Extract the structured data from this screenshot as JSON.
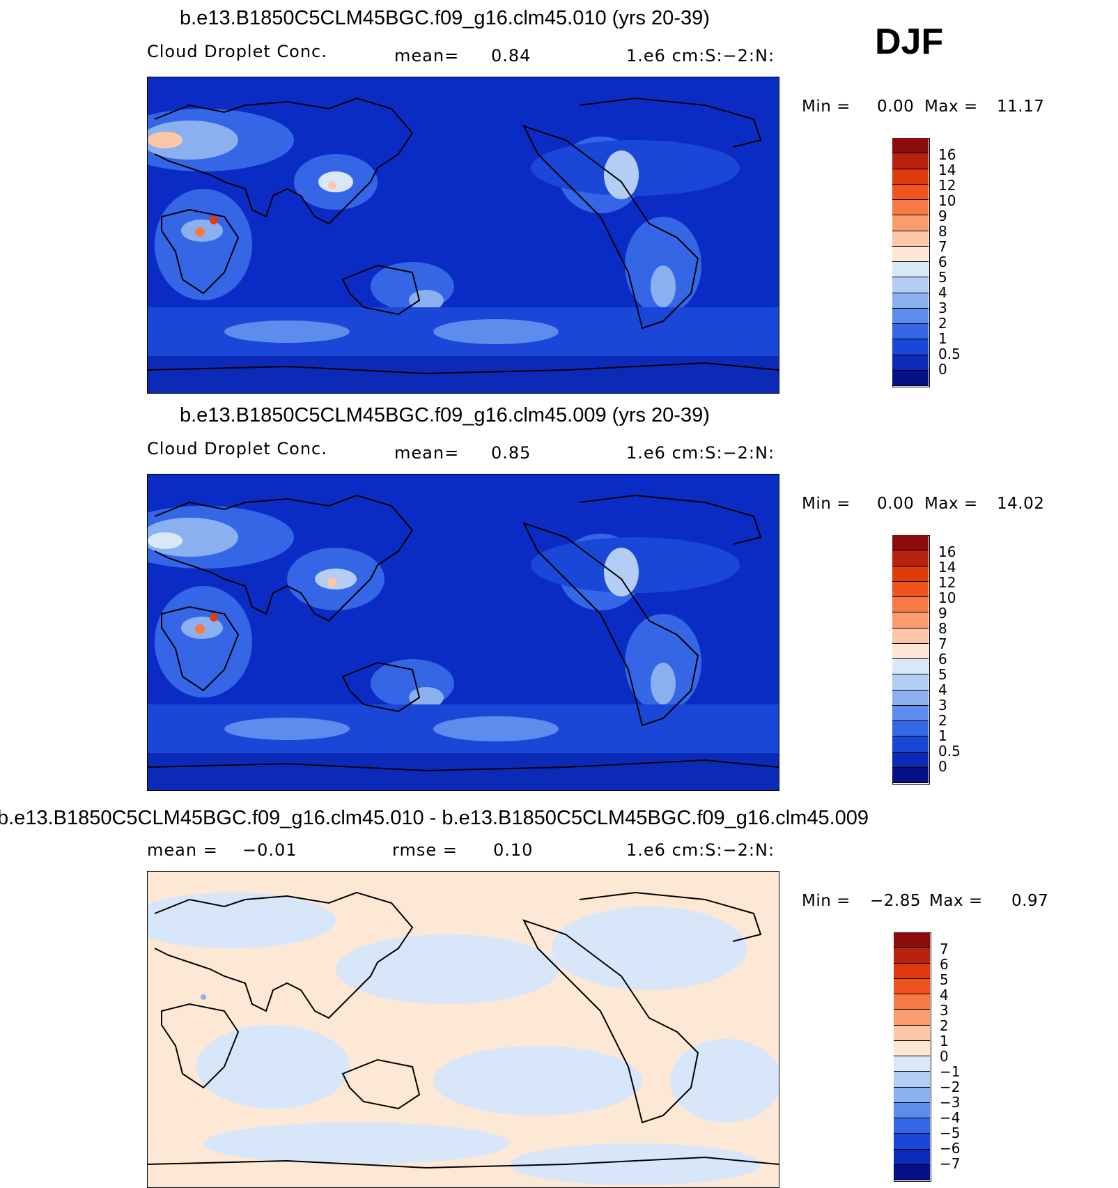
{
  "season": "DJF",
  "panels": [
    {
      "title": "b.e13.B1850C5CLM45BGC.f09_g16.clm45.010 (yrs 20-39)",
      "left_label": "Cloud Droplet Conc.",
      "center_label": "mean=",
      "center_value": "0.84",
      "units": "1.e6 cm:S:−2:N:",
      "min_label": "Min =",
      "min_value": "0.00",
      "max_label": "Max =",
      "max_value": "11.17",
      "colorbar": [
        "16",
        "14",
        "12",
        "10",
        "9",
        "8",
        "7",
        "6",
        "5",
        "4",
        "3",
        "2",
        "1",
        "0.5",
        "0"
      ]
    },
    {
      "title": "b.e13.B1850C5CLM45BGC.f09_g16.clm45.009 (yrs 20-39)",
      "left_label": "Cloud Droplet Conc.",
      "center_label": "mean=",
      "center_value": "0.85",
      "units": "1.e6 cm:S:−2:N:",
      "min_label": "Min =",
      "min_value": "0.00",
      "max_label": "Max =",
      "max_value": "14.02",
      "colorbar": [
        "16",
        "14",
        "12",
        "10",
        "9",
        "8",
        "7",
        "6",
        "5",
        "4",
        "3",
        "2",
        "1",
        "0.5",
        "0"
      ]
    },
    {
      "title": "b.e13.B1850C5CLM45BGC.f09_g16.clm45.010 - b.e13.B1850C5CLM45BGC.f09_g16.clm45.009",
      "left_label": "mean =",
      "left_value": "−0.01",
      "center_label": "rmse =",
      "center_value": "0.10",
      "units": "1.e6 cm:S:−2:N:",
      "min_label": "Min =",
      "min_value": "−2.85",
      "max_label": "Max =",
      "max_value": "0.97",
      "colorbar": [
        "7",
        "6",
        "5",
        "4",
        "3",
        "2",
        "1",
        "0",
        "−1",
        "−2",
        "−3",
        "−4",
        "−5",
        "−6",
        "−7"
      ]
    }
  ],
  "colors": {
    "scale16": [
      "#8a0c0c",
      "#b8230f",
      "#e03a0d",
      "#f0531c",
      "#f67a45",
      "#f99c6e",
      "#fbc7a8",
      "#fde6d4",
      "#d8e8f8",
      "#b4cdf4",
      "#8bb0f0",
      "#5d8cec",
      "#3466e6",
      "#1a47d8",
      "#0c2ab8",
      "#061088"
    ],
    "ocean_bg": "#0a2cc4",
    "diff_bg": "#fde8d6",
    "diff_neg": "#d7e6f8"
  }
}
